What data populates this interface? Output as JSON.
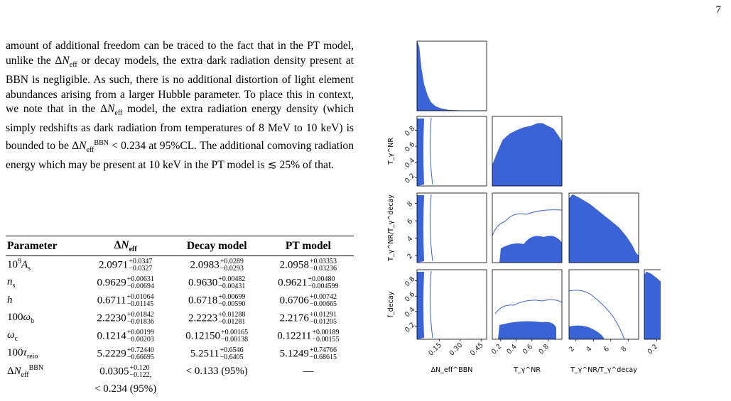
{
  "page_number": "7",
  "paragraph": {
    "s1": "amount of additional freedom can be traced to the fact that in the PT model, unlike the ",
    "s1b": " or decay models, the extra dark radiation density present at BBN is negligible. As such, there is no additional distortion of light element abundances arising from a larger Hubble parameter. To place this in context, we note that in the ",
    "s2": " model, the extra radiation energy density (which simply redshifts as dark radiation from temperatures of 8 MeV to 10 keV) is bounded to be ",
    "s3": " < 0.234 at 95%CL. The additional comoving radiation energy which may be present at 10 keV in the PT model is ",
    "s4": " 25% of that."
  },
  "table": {
    "headers": [
      "Parameter",
      "ΔN_eff",
      "Decay model",
      "PT model"
    ],
    "rows": [
      {
        "param": "10⁹A_s",
        "c1": "2.0971",
        "c1u": "+0.0347",
        "c1l": "−0.0327",
        "c2": "2.0983",
        "c2u": "+0.0289",
        "c2l": "−0.0293",
        "c3": "2.0958",
        "c3u": "+0.03353",
        "c3l": "−0.03236"
      },
      {
        "param": "n_s",
        "c1": "0.9629",
        "c1u": "+0.00631",
        "c1l": "−0.00694",
        "c2": "0.9630",
        "c2u": "+0.00482",
        "c2l": "−0.00431",
        "c3": "0.9621",
        "c3u": "+0.00480",
        "c3l": "−0.004599"
      },
      {
        "param": "h",
        "c1": "0.6711",
        "c1u": "+0.01064",
        "c1l": "−0.01145",
        "c2": "0.6718",
        "c2u": "+0.00699",
        "c2l": "−0.00590",
        "c3": "0.6706",
        "c3u": "+0.00742",
        "c3l": "−0.00665"
      },
      {
        "param": "100ω_b",
        "c1": "2.2230",
        "c1u": "+0.01842",
        "c1l": "−0.01836",
        "c2": "2.2223",
        "c2u": "+0.01288",
        "c2l": "−0.01281",
        "c3": "2.2176",
        "c3u": "+0.01291",
        "c3l": "−0.01205"
      },
      {
        "param": "ω_c",
        "c1": "0.1214",
        "c1u": "+0.00199",
        "c1l": "−0.00203",
        "c2": "0.12150",
        "c2u": "+0.00165",
        "c2l": "−0.00138",
        "c3": "0.12211",
        "c3u": "+0.00189",
        "c3l": "−0.00155"
      },
      {
        "param": "100τ_reio",
        "c1": "5.2229",
        "c1u": "+0.72440",
        "c1l": "−0.66695",
        "c2": "5.2511",
        "c2u": "+0.6546",
        "c2l": "−0.6405",
        "c3": "5.1249",
        "c3u": "+0.74766",
        "c3l": "−0.68615"
      }
    ],
    "last_row": {
      "param": "ΔN_eff^BBN",
      "c1": "0.0305",
      "c1u": "+0.120",
      "c1l": "−0.122",
      "c1b": "< 0.234 (95%)",
      "c2": "< 0.133 (95%)",
      "c3": "—"
    }
  },
  "figure": {
    "axis_labels": {
      "dneff": "ΔN_eff^BBN",
      "tnr": "T_γ^NR",
      "ratio": "T_γ^NR/T_γ^decay",
      "fdecay": "f_decay"
    },
    "ticks": {
      "dneff": [
        "0.15",
        "0.30",
        "0.45"
      ],
      "tnr": [
        "0.2",
        "0.4",
        "0.6",
        "0.8"
      ],
      "ratio": [
        "2",
        "4",
        "6",
        "8"
      ],
      "fdecay": [
        "0.2",
        "0.4",
        "0.6",
        "0.8"
      ]
    },
    "fill_color": "#3b63d8",
    "line_color": "#3b63d8"
  }
}
